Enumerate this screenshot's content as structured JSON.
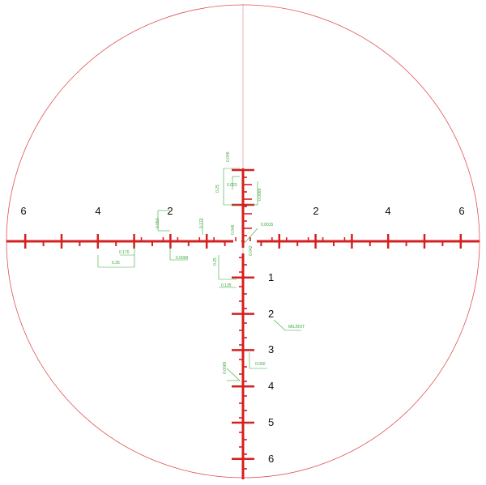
{
  "colors": {
    "reticle": "#d42020",
    "circle": "#e05050",
    "dimension": "#3aa83a",
    "labels": "#111111"
  },
  "horizontal_labels": {
    "left": [
      "2",
      "4",
      "6"
    ],
    "right": [
      "2",
      "4",
      "6"
    ]
  },
  "vertical_labels": [
    "1",
    "2",
    "3",
    "4",
    "5",
    "6"
  ],
  "dimension_labels": {
    "top_1": "0.045",
    "top_2": "0.023",
    "top_3": "0.25",
    "top_4": "0.0069",
    "left_1": "0.050",
    "left_2": "0.170",
    "left_3": "0.170",
    "left_4": "0.35",
    "left_5": "0.0069",
    "center_1": "0.046",
    "center_2": "0.0015",
    "center_3": "0.042",
    "lower_1": "0.25",
    "lower_2": "0.135",
    "lower_3": "0.050",
    "lower_4": "0.0069",
    "lower_5": "MIL/DOT"
  }
}
